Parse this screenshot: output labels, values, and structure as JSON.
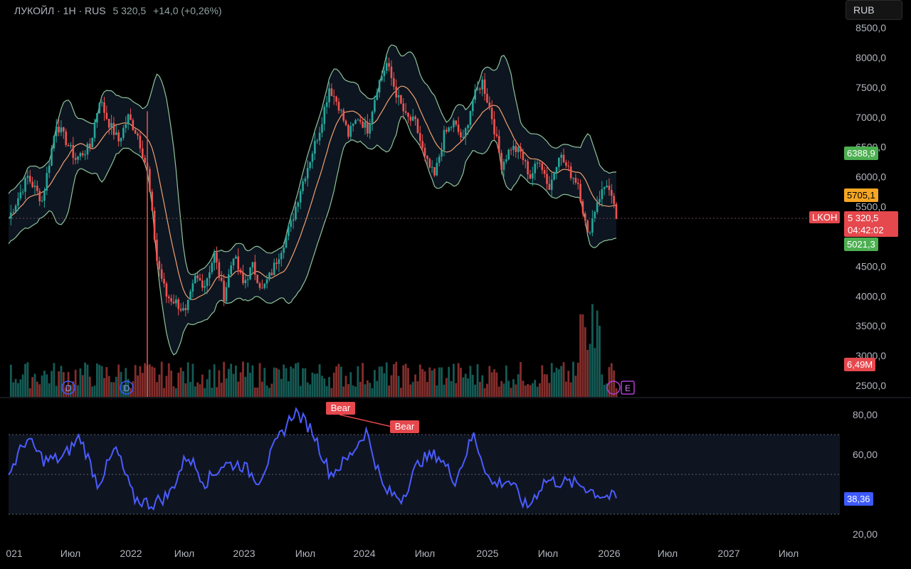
{
  "header": {
    "symbol_info": "ЛУКОЙЛ · 1H · RUS",
    "last_value": "5 320,5",
    "change": "+14,0 (+0,26%)"
  },
  "currency_button": "RUB",
  "price_axis": {
    "labels": [
      "8500,0",
      "8000,0",
      "7500,0",
      "7000,0",
      "6500,0",
      "6000,0",
      "5500,0",
      "4500,0",
      "4000,0",
      "3500,0",
      "3000,0",
      "2500,0"
    ]
  },
  "rsi_axis": {
    "labels": [
      "80,00",
      "60,00",
      "20,00"
    ]
  },
  "time_axis": {
    "labels": [
      "021",
      "Июл",
      "2022",
      "Июл",
      "2023",
      "Июл",
      "2024",
      "Июл",
      "2025",
      "Июл",
      "2026",
      "Июл",
      "2027",
      "Июл"
    ]
  },
  "tags": {
    "upper_band": "6388,9",
    "middle_band": "5705,1",
    "lower_band": "5021,3",
    "symbol": "LKOH",
    "last_price": "5 320,5",
    "countdown": "04:42:02",
    "volume": "6,49M",
    "rsi": "38,36"
  },
  "markers": {
    "dividend_1": "D",
    "dividend_2": "D",
    "earnings": "E",
    "bear_1": "Bear",
    "bear_2": "Bear"
  },
  "colors": {
    "up": "#26a69a",
    "down": "#ef5350",
    "basis": "#f0a070",
    "bands": "#8fc39a",
    "band_fill": "#0d1520",
    "rsi_line": "#4a5cff",
    "rsi_band_fill": "#0f1421",
    "bear": "#e5484d",
    "marker_blue": "#3d5afe",
    "marker_purple": "#b03cd6"
  },
  "chart_data": {
    "type": "line",
    "title": "",
    "price_range": [
      2500,
      8500
    ],
    "x_labels": [
      "021",
      "Июл",
      "2022",
      "Июл",
      "2023",
      "Июл",
      "2024",
      "Июл",
      "2025",
      "Июл",
      "2026",
      "Июл",
      "2027",
      "Июл"
    ],
    "series": [
      {
        "name": "close",
        "points_x": [
          0.0,
          0.08,
          0.12,
          0.16,
          0.2,
          0.24,
          0.27,
          0.29,
          0.3,
          0.32,
          0.34,
          0.36,
          0.38,
          0.4,
          0.42,
          0.44,
          0.46,
          0.48,
          0.5,
          0.52,
          0.54,
          0.56,
          0.58,
          0.6,
          0.62,
          0.64,
          0.66,
          0.68,
          0.7,
          0.72,
          0.74,
          0.76,
          0.78,
          0.8,
          0.82,
          0.84,
          0.86,
          0.88,
          0.9,
          0.92,
          0.94,
          0.96,
          0.98,
          1.0
        ],
        "values": [
          5300,
          6000,
          6900,
          6300,
          6400,
          7200,
          7000,
          6700,
          6900,
          5000,
          4100,
          3800,
          4600,
          4300,
          4800,
          4000,
          4500,
          5400,
          6600,
          7400,
          6700,
          7300,
          7900,
          7100,
          6000,
          6700,
          7000,
          6600,
          7400,
          7000,
          6400,
          6700,
          6000,
          6400,
          5900,
          5000,
          5900,
          5320,
          5400,
          5350,
          5320,
          5320,
          5320,
          5320
        ]
      },
      {
        "name": "RSI",
        "values": [
          50,
          68,
          57,
          58,
          69,
          45,
          63,
          38,
          35,
          40,
          60,
          46,
          55,
          55,
          47,
          66,
          82,
          72,
          50,
          58,
          72,
          42,
          38,
          57,
          60,
          47,
          70,
          45,
          47,
          33,
          47,
          46,
          45,
          40,
          38
        ]
      }
    ],
    "rsi_levels": [
      70,
      50,
      30
    ],
    "current": {
      "price": 5320.5,
      "upper_band": 6388.9,
      "basis": 5705.1,
      "lower_band": 5021.3,
      "volume": "6,49M",
      "rsi": 38.36
    }
  }
}
